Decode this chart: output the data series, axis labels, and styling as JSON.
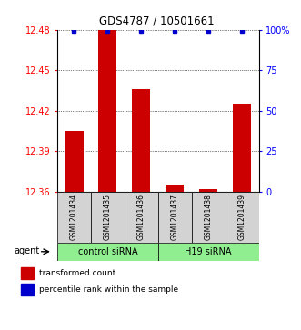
{
  "title": "GDS4787 / 10501661",
  "samples": [
    "GSM1201434",
    "GSM1201435",
    "GSM1201436",
    "GSM1201437",
    "GSM1201438",
    "GSM1201439"
  ],
  "bar_values": [
    12.405,
    12.48,
    12.436,
    12.365,
    12.362,
    12.425
  ],
  "percentile_values": [
    99,
    99,
    99,
    99,
    99,
    99
  ],
  "ylim_left": [
    12.36,
    12.48
  ],
  "ylim_right": [
    0,
    100
  ],
  "yticks_left": [
    12.36,
    12.39,
    12.42,
    12.45,
    12.48
  ],
  "yticks_right": [
    0,
    25,
    50,
    75,
    100
  ],
  "ytick_labels_right": [
    "0",
    "25",
    "50",
    "75",
    "100%"
  ],
  "bar_color": "#cc0000",
  "dot_color": "#0000cc",
  "groups": [
    {
      "label": "control siRNA",
      "start": 0,
      "end": 2,
      "color": "#90ee90"
    },
    {
      "label": "H19 siRNA",
      "start": 3,
      "end": 5,
      "color": "#90ee90"
    }
  ],
  "legend_items": [
    {
      "label": "transformed count",
      "color": "#cc0000"
    },
    {
      "label": "percentile rank within the sample",
      "color": "#0000cc"
    }
  ],
  "agent_label": "agent",
  "tick_area_color": "#d3d3d3"
}
